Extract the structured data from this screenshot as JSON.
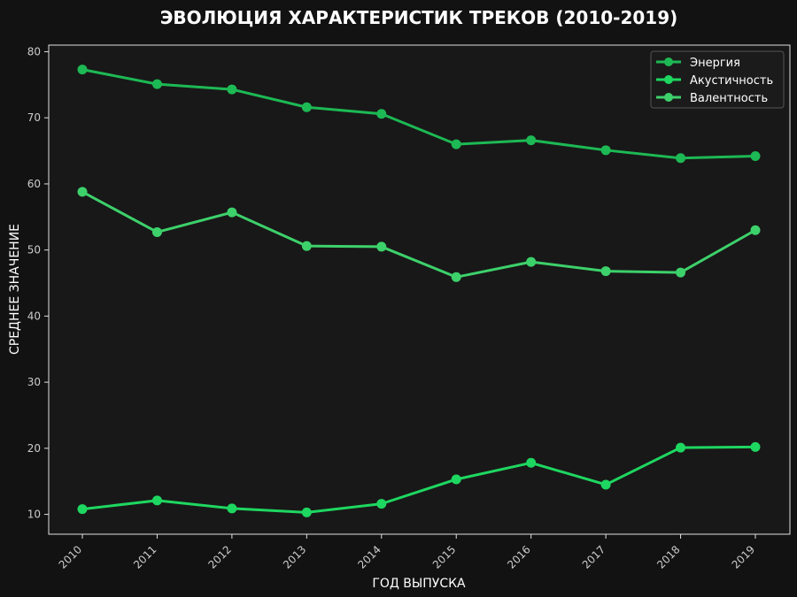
{
  "colors": {
    "page_bg": "#121212",
    "plot_bg": "#181818",
    "axis": "#e0e0e0",
    "text": "#ffffff",
    "tick_text": "#cccccc"
  },
  "chart_data": {
    "type": "line",
    "title": "ЭВОЛЮЦИЯ ХАРАКТЕРИСТИК ТРЕКОВ (2010-2019)",
    "xlabel": "ГОД ВЫПУСКА",
    "ylabel": "СРЕДНЕЕ ЗНАЧЕНИЕ",
    "x": [
      "2010",
      "2011",
      "2012",
      "2013",
      "2014",
      "2015",
      "2016",
      "2017",
      "2018",
      "2019"
    ],
    "ylim": [
      7,
      81
    ],
    "yticks": [
      10,
      20,
      30,
      40,
      50,
      60,
      70,
      80
    ],
    "grid": false,
    "legend_position": "top-right",
    "series": [
      {
        "name": "Энергия",
        "color": "#1db954",
        "values": [
          77.3,
          75.1,
          74.3,
          71.6,
          70.6,
          66.0,
          66.6,
          65.1,
          63.9,
          64.2
        ]
      },
      {
        "name": "Акустичность",
        "color": "#1ed760",
        "values": [
          10.8,
          12.1,
          10.9,
          10.3,
          11.6,
          15.3,
          17.8,
          14.5,
          20.1,
          20.2
        ]
      },
      {
        "name": "Валентность",
        "color": "#3dd16b",
        "values": [
          58.8,
          52.7,
          55.7,
          50.6,
          50.5,
          45.9,
          48.2,
          46.8,
          46.6,
          53.0
        ]
      }
    ]
  }
}
